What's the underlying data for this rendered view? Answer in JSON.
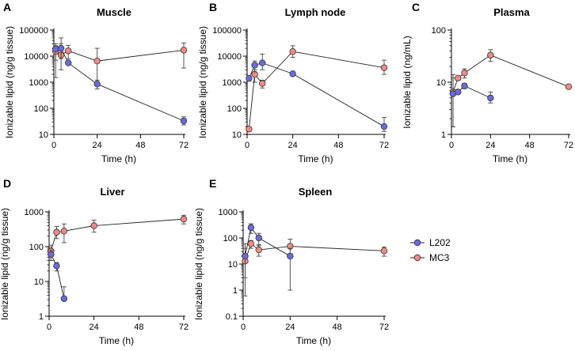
{
  "colors": {
    "L202": "#6a6ade",
    "MC3": "#ef8b84",
    "axis": "#000000"
  },
  "legend": [
    {
      "name": "L202",
      "color": "#6a6ade"
    },
    {
      "name": "MC3",
      "color": "#ef8b84"
    }
  ],
  "chart_data": [
    {
      "panel": "A",
      "type": "scatter",
      "title": "Muscle",
      "xlabel": "Time (h)",
      "ylabel": "Ionizable lipid (ng/g tissue)",
      "yscale": "log",
      "ylim": [
        10,
        100000
      ],
      "xlim": [
        0,
        72
      ],
      "xticks": [
        0,
        24,
        48,
        72
      ],
      "yticks": [
        10,
        100,
        1000,
        10000,
        100000
      ],
      "series": [
        {
          "name": "L202",
          "x": [
            1,
            4,
            8,
            24,
            72
          ],
          "y": [
            19000,
            20000,
            5500,
            850,
            33
          ],
          "err_low": [
            7000,
            8000,
            4700,
            550,
            23
          ],
          "err_high": [
            30000,
            30000,
            6500,
            1200,
            47
          ]
        },
        {
          "name": "MC3",
          "x": [
            1,
            4,
            8,
            24,
            72
          ],
          "y": [
            15000,
            11000,
            16000,
            6500,
            17000
          ],
          "err_low": [
            1500,
            3000,
            8000,
            1000,
            3500
          ],
          "err_high": [
            25000,
            50000,
            26000,
            20000,
            32000
          ]
        }
      ]
    },
    {
      "panel": "B",
      "type": "scatter",
      "title": "Lymph node",
      "xlabel": "Time (h)",
      "ylabel": "Ionizable lipid (ng/g tissue)",
      "yscale": "log",
      "ylim": [
        10,
        100000
      ],
      "xlim": [
        0,
        72
      ],
      "xticks": [
        0,
        24,
        48,
        72
      ],
      "yticks": [
        10,
        100,
        1000,
        10000,
        100000
      ],
      "series": [
        {
          "name": "L202",
          "x": [
            1,
            4,
            8,
            24,
            72
          ],
          "y": [
            1400,
            4500,
            5500,
            2100,
            20
          ],
          "err_low": [
            1100,
            2500,
            3000,
            2100,
            13
          ],
          "err_high": [
            1700,
            6500,
            12000,
            2100,
            45
          ]
        },
        {
          "name": "MC3",
          "x": [
            1,
            4,
            8,
            24,
            72
          ],
          "y": [
            16,
            2000,
            900,
            15000,
            3600
          ],
          "err_low": [
            16,
            1000,
            600,
            9000,
            2000
          ],
          "err_high": [
            16,
            3000,
            1200,
            25000,
            7000
          ]
        }
      ]
    },
    {
      "panel": "C",
      "type": "scatter",
      "title": "Plasma",
      "xlabel": "Time (h)",
      "ylabel": "Ionizable lipid (ng/mL)",
      "yscale": "log",
      "ylim": [
        1,
        100
      ],
      "xlim": [
        0,
        72
      ],
      "xticks": [
        0,
        24,
        48,
        72
      ],
      "yticks": [
        1,
        10,
        100
      ],
      "series": [
        {
          "name": "L202",
          "x": [
            1,
            4,
            8,
            24
          ],
          "y": [
            6,
            6.5,
            8.5,
            5
          ],
          "err_low": [
            1.4,
            6.5,
            7.5,
            4
          ],
          "err_high": [
            14,
            6.5,
            9.5,
            6.5
          ]
        },
        {
          "name": "MC3",
          "x": [
            1,
            4,
            8,
            24,
            72
          ],
          "y": [
            6.5,
            12,
            15,
            33,
            8.2
          ],
          "err_low": [
            1.4,
            11,
            12,
            25,
            8.2
          ],
          "err_high": [
            12,
            13,
            18,
            42,
            8.2
          ]
        }
      ]
    },
    {
      "panel": "D",
      "type": "scatter",
      "title": "Liver",
      "xlabel": "Time (h)",
      "ylabel": "Ionizable lipid (ng/g tissue)",
      "yscale": "log",
      "ylim": [
        1,
        1000
      ],
      "xlim": [
        0,
        72
      ],
      "xticks": [
        0,
        24,
        48,
        72
      ],
      "yticks": [
        1,
        10,
        100,
        1000
      ],
      "series": [
        {
          "name": "L202",
          "x": [
            1,
            4,
            8
          ],
          "y": [
            60,
            28,
            3.2
          ],
          "err_low": [
            40,
            20,
            3.2
          ],
          "err_high": [
            80,
            35,
            7
          ]
        },
        {
          "name": "MC3",
          "x": [
            1,
            4,
            8,
            24,
            72
          ],
          "y": [
            75,
            260,
            280,
            400,
            620
          ],
          "err_low": [
            40,
            170,
            130,
            260,
            450
          ],
          "err_high": [
            110,
            380,
            450,
            580,
            800
          ]
        }
      ]
    },
    {
      "panel": "E",
      "type": "scatter",
      "title": "Spleen",
      "xlabel": "Time (h)",
      "ylabel": "Ionizable lipid (ng/g tissue)",
      "yscale": "log",
      "ylim": [
        0.1,
        1000
      ],
      "xlim": [
        0,
        72
      ],
      "xticks": [
        0,
        24,
        48,
        72
      ],
      "yticks": [
        0.1,
        1,
        10,
        100,
        1000
      ],
      "series": [
        {
          "name": "L202",
          "x": [
            1,
            4,
            8,
            24
          ],
          "y": [
            20,
            250,
            100,
            20
          ],
          "err_low": [
            0.6,
            150,
            50,
            1
          ],
          "err_high": [
            40,
            350,
            150,
            40
          ]
        },
        {
          "name": "MC3",
          "x": [
            1,
            4,
            8,
            24,
            72
          ],
          "y": [
            13,
            60,
            35,
            48,
            32
          ],
          "err_low": [
            3,
            40,
            20,
            25,
            20
          ],
          "err_high": [
            60,
            80,
            55,
            90,
            45
          ]
        }
      ]
    }
  ]
}
